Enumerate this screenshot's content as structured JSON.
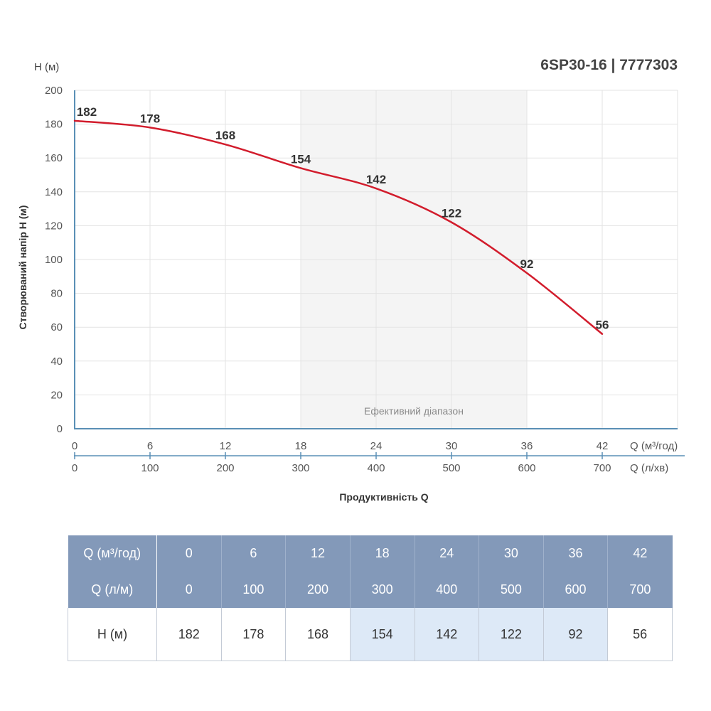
{
  "header": {
    "y_unit_label": "H (м)",
    "title": "6SP30-16 | 7777303"
  },
  "chart_data": {
    "type": "line",
    "title": "6SP30-16 | 7777303",
    "ylabel": "Створюваний напір H (м)",
    "xlabel": "Продуктивність Q",
    "x_m3h": [
      0,
      6,
      12,
      18,
      24,
      30,
      36,
      42
    ],
    "x_lmin": [
      0,
      100,
      200,
      300,
      400,
      500,
      600,
      700
    ],
    "x_unit_m3h": "Q (м³/год)",
    "x_unit_lmin": "Q (л/хв)",
    "series": [
      {
        "values": [
          182,
          178,
          168,
          154,
          142,
          122,
          92,
          56
        ],
        "color": "#d21c2c"
      }
    ],
    "xlim": [
      0,
      48
    ],
    "ylim": [
      0,
      200
    ],
    "yticks": [
      0,
      20,
      40,
      60,
      80,
      100,
      120,
      140,
      160,
      180,
      200
    ],
    "efficient_range": {
      "from": 18,
      "to": 36,
      "label": "Ефективний діапазон"
    },
    "grid": true
  },
  "table": {
    "row_q_m3h_label": "Q (м³/год)",
    "row_q_lmin_label": "Q (л/м)",
    "row_h_label": "H (м)",
    "q_m3h": [
      "0",
      "6",
      "12",
      "18",
      "24",
      "30",
      "36",
      "42"
    ],
    "q_lmin": [
      "0",
      "100",
      "200",
      "300",
      "400",
      "500",
      "600",
      "700"
    ],
    "h": [
      "182",
      "178",
      "168",
      "154",
      "142",
      "122",
      "92",
      "56"
    ],
    "highlighted": [
      false,
      false,
      false,
      true,
      true,
      true,
      true,
      false
    ]
  },
  "colors": {
    "curve": "#d21c2c",
    "axis": "#5a8fb5",
    "band": "#f4f4f4",
    "table_header": "#8399b9",
    "table_highlight": "#dde9f7"
  }
}
